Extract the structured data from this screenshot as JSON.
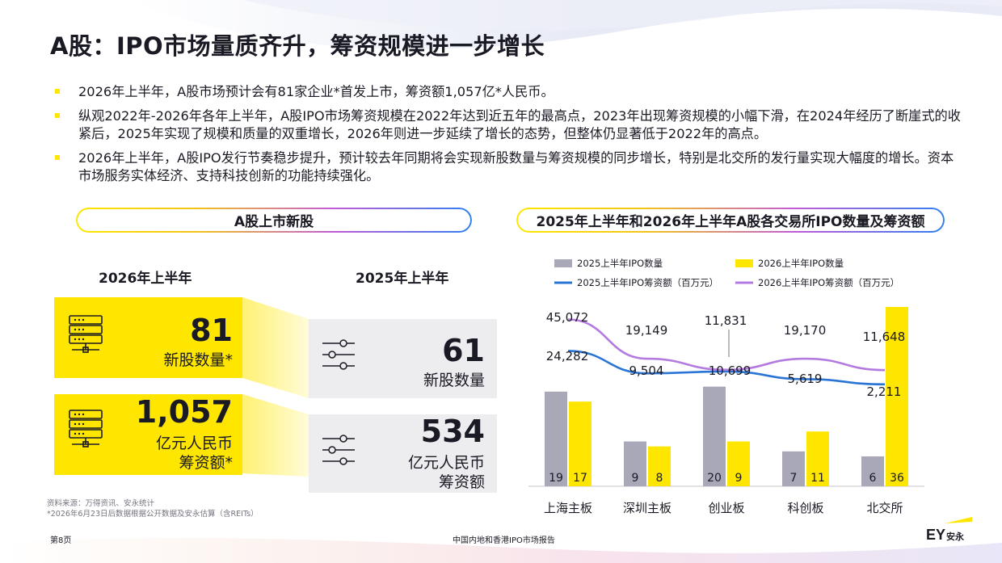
{
  "title": "A股：IPO市场量质齐升，筹资规模进一步增长",
  "bullets": [
    "2026年上半年，A股市场预计会有81家企业*首发上市，筹资额1,057亿*人民币。",
    "纵观2022年-2026年各年上半年，A股IPO市场筹资规模在2022年达到近五年的最高点，2023年出现筹资规模的小幅下滑，在2024年经历了断崖式的收紧后，2025年实现了规模和质量的双重增长，2026年则进一步延续了增长的态势，但整体仍显著低于2022年的高点。",
    "2026年上半年，A股IPO发行节奏稳步提升，预计较去年同期将会实现新股数量与筹资规模的同步增长，特别是北交所的发行量实现大幅度的增长。资本市场服务实体经济、支持科技创新的功能持续强化。"
  ],
  "left_panel": {
    "heading": "A股上市新股",
    "period_2026": "2026年上半年",
    "period_2025": "2025年上半年",
    "count_2026": "81",
    "count_2026_label": "新股数量*",
    "amount_2026": "1,057",
    "amount_2026_label_1": "亿元人民币",
    "amount_2026_label_2": "筹资额*",
    "count_2025": "61",
    "count_2025_label": "新股数量",
    "amount_2025": "534",
    "amount_2025_label_1": "亿元人民币",
    "amount_2025_label_2": "筹资额"
  },
  "right_panel": {
    "heading": "2025年上半年和2026年上半年A股各交易所IPO数量及筹资额"
  },
  "colors": {
    "yellow": "#ffe600",
    "gray_bar": "#a9a8b8",
    "line_2025": "#2a74d6",
    "line_2026": "#b37be0",
    "text": "#1a1a24"
  },
  "chart_data": {
    "type": "bar",
    "categories": [
      "上海主板",
      "深圳主板",
      "创业板",
      "科创板",
      "北交所"
    ],
    "series": [
      {
        "name": "2025上半年IPO数量",
        "kind": "bar",
        "color": "#a9a8b8",
        "values": [
          19,
          9,
          20,
          7,
          6
        ]
      },
      {
        "name": "2026上半年IPO数量",
        "kind": "bar",
        "color": "#ffe600",
        "values": [
          17,
          8,
          9,
          11,
          36
        ]
      },
      {
        "name": "2025上半年IPO筹资额（百万元）",
        "kind": "line",
        "color": "#2a74d6",
        "values": [
          24282,
          9504,
          10699,
          5619,
          2211
        ]
      },
      {
        "name": "2026上半年IPO筹资额（百万元）",
        "kind": "line",
        "color": "#b37be0",
        "values": [
          45072,
          19149,
          11831,
          19170,
          11648
        ]
      }
    ],
    "line_labels": [
      "45,072",
      "24,282",
      "19,149",
      "9,504",
      "11,831",
      "10,699",
      "19,170",
      "5,619",
      "11,648",
      "2,211"
    ],
    "legend_position": "top",
    "grid": false
  },
  "source": {
    "line1": "资料来源：万得资讯、安永统计",
    "line2": "*2026年6月23日后数据根据公开数据及安永估算（含REITs）"
  },
  "footer": {
    "page": "第8页",
    "report": "中国内地和香港IPO市场报告",
    "logo_text": "EY安永"
  }
}
